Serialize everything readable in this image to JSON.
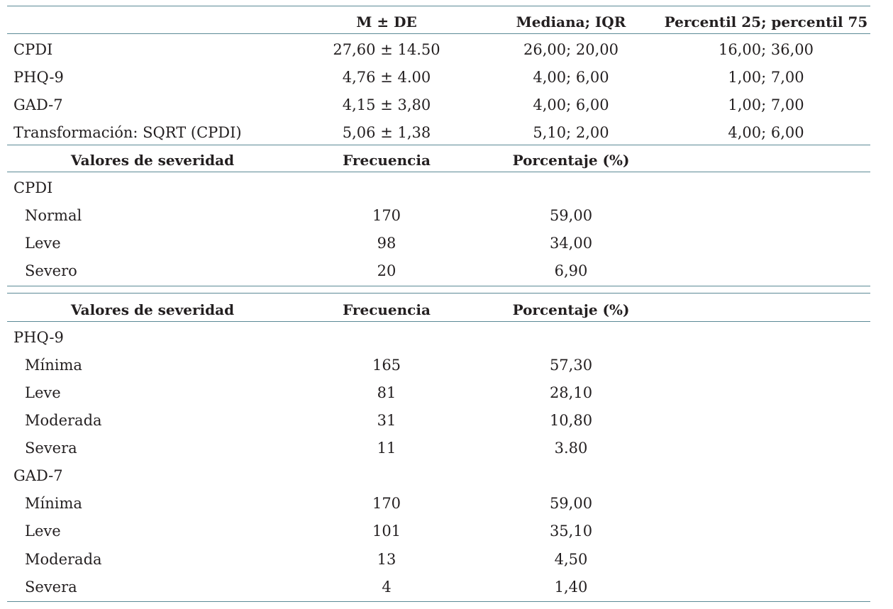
{
  "table_summary": {
    "header": {
      "col_label": "",
      "col_m_de": "M ± DE",
      "col_median_iqr": "Mediana; IQR",
      "col_percentile": "Percentil 25; percentil 75"
    },
    "rows": [
      {
        "label": "CPDI",
        "m_de": "27,60 ± 14.50",
        "median_iqr": "26,00; 20,00",
        "percentile": "16,00; 36,00"
      },
      {
        "label": "PHQ-9",
        "m_de": "4,76 ± 4.00",
        "median_iqr": "4,00; 6,00",
        "percentile": "1,00; 7,00"
      },
      {
        "label": "GAD-7",
        "m_de": "4,15 ± 3,80",
        "median_iqr": "4,00; 6,00",
        "percentile": "1,00; 7,00"
      },
      {
        "label": "Transformación: SQRT (CPDI)",
        "m_de": "5,06 ± 1,38",
        "median_iqr": "5,10; 2,00",
        "percentile": "4,00; 6,00"
      }
    ]
  },
  "table_cpdi": {
    "header": {
      "col_severity": "Valores de severidad",
      "col_freq": "Frecuencia",
      "col_pct": "Porcentaje (%)"
    },
    "group_label": "CPDI",
    "rows": [
      {
        "label": "Normal",
        "freq": "170",
        "pct": "59,00"
      },
      {
        "label": "Leve",
        "freq": "98",
        "pct": "34,00"
      },
      {
        "label": "Severo",
        "freq": "20",
        "pct": "6,90"
      }
    ]
  },
  "table_phq_gad": {
    "header": {
      "col_severity": "Valores de severidad",
      "col_freq": "Frecuencia",
      "col_pct": "Porcentaje (%)"
    },
    "groups": [
      {
        "group_label": "PHQ-9",
        "rows": [
          {
            "label": "Mínima",
            "freq": "165",
            "pct": "57,30"
          },
          {
            "label": "Leve",
            "freq": "81",
            "pct": "28,10"
          },
          {
            "label": "Moderada",
            "freq": "31",
            "pct": "10,80"
          },
          {
            "label": "Severa",
            "freq": "11",
            "pct": "3.80"
          }
        ]
      },
      {
        "group_label": "GAD-7",
        "rows": [
          {
            "label": "Mínima",
            "freq": "170",
            "pct": "59,00"
          },
          {
            "label": "Leve",
            "freq": "101",
            "pct": "35,10"
          },
          {
            "label": "Moderada",
            "freq": "13",
            "pct": "4,50"
          },
          {
            "label": "Severa",
            "freq": "4",
            "pct": "1,40"
          }
        ]
      }
    ]
  },
  "colors": {
    "rule": "#5b8a96",
    "text": "#231f20"
  }
}
